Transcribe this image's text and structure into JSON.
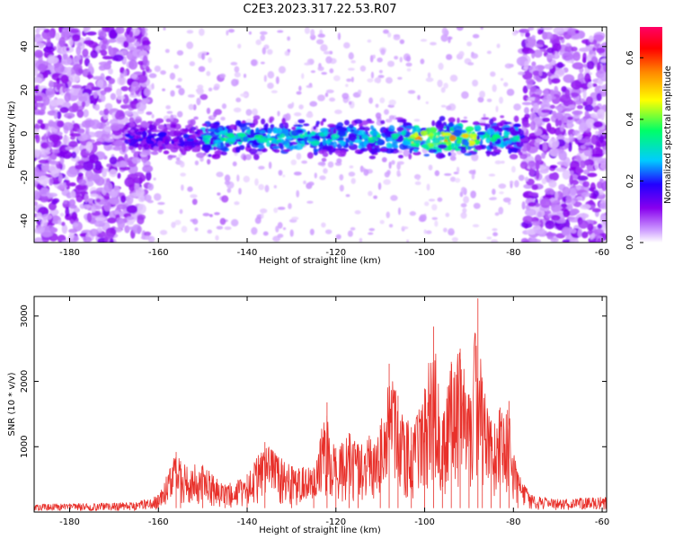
{
  "title": "C2E3.2023.317.22.53.R07",
  "colors": {
    "snr_line": "#e8302a",
    "colormap": [
      "#ffffff",
      "#cc99ff",
      "#8800ee",
      "#2200ff",
      "#00ccff",
      "#00ff66",
      "#ffff00",
      "#ff8800",
      "#ff0000",
      "#ff0066"
    ]
  },
  "chart_data": [
    {
      "type": "heatmap",
      "xlabel": "Height of straight line (km)",
      "ylabel": "Frequency (Hz)",
      "xlim": [
        -188,
        -59
      ],
      "ylim": [
        -50,
        49
      ],
      "xticks": [
        -180,
        -160,
        -140,
        -120,
        -100,
        -80,
        -60
      ],
      "yticks": [
        -40,
        -20,
        0,
        20,
        40
      ],
      "colorbar": {
        "label": "Normalized spectral amplitude",
        "range": [
          0,
          0.7
        ],
        "ticks": [
          "0.0",
          "0.2",
          "0.4",
          "0.6"
        ],
        "tick_values": [
          0,
          0.2,
          0.4,
          0.6
        ]
      },
      "main_band": {
        "x_range": [
          -167,
          -78
        ],
        "frequency_center": -2,
        "frequency_halfwidth": 7,
        "peak_amplitude_near_km": [
          -103,
          -88
        ]
      },
      "noise_regions_km": [
        [
          -188,
          -162
        ],
        [
          -78,
          -59
        ]
      ],
      "grid": false
    },
    {
      "type": "line",
      "xlabel": "Height of straight line (km)",
      "ylabel": "SNR (10 * v/v)",
      "xlim": [
        -188,
        -59
      ],
      "ylim": [
        0,
        3300
      ],
      "xticks": [
        -180,
        -160,
        -140,
        -120,
        -100,
        -80,
        -60
      ],
      "yticks": [
        1000,
        2000,
        3000
      ],
      "series": [
        {
          "x": [
            -188,
            -180,
            -170,
            -165,
            -160,
            -156,
            -155,
            -150,
            -145,
            -140,
            -136,
            -130,
            -125,
            -122,
            -120,
            -117,
            -115,
            -110,
            -108,
            -106,
            -103,
            -100,
            -98,
            -96,
            -94,
            -92,
            -90,
            -88,
            -87,
            -85,
            -83,
            -81,
            -79,
            -76,
            -70,
            -65,
            -59
          ],
          "y": [
            120,
            130,
            140,
            150,
            260,
            920,
            780,
            720,
            420,
            580,
            1070,
            700,
            680,
            1680,
            980,
            1210,
            1040,
            1330,
            2270,
            1780,
            1300,
            1890,
            2840,
            1400,
            2300,
            2500,
            1800,
            3270,
            2000,
            1400,
            1600,
            1700,
            600,
            260,
            200,
            220,
            230
          ]
        }
      ],
      "grid": false
    }
  ]
}
